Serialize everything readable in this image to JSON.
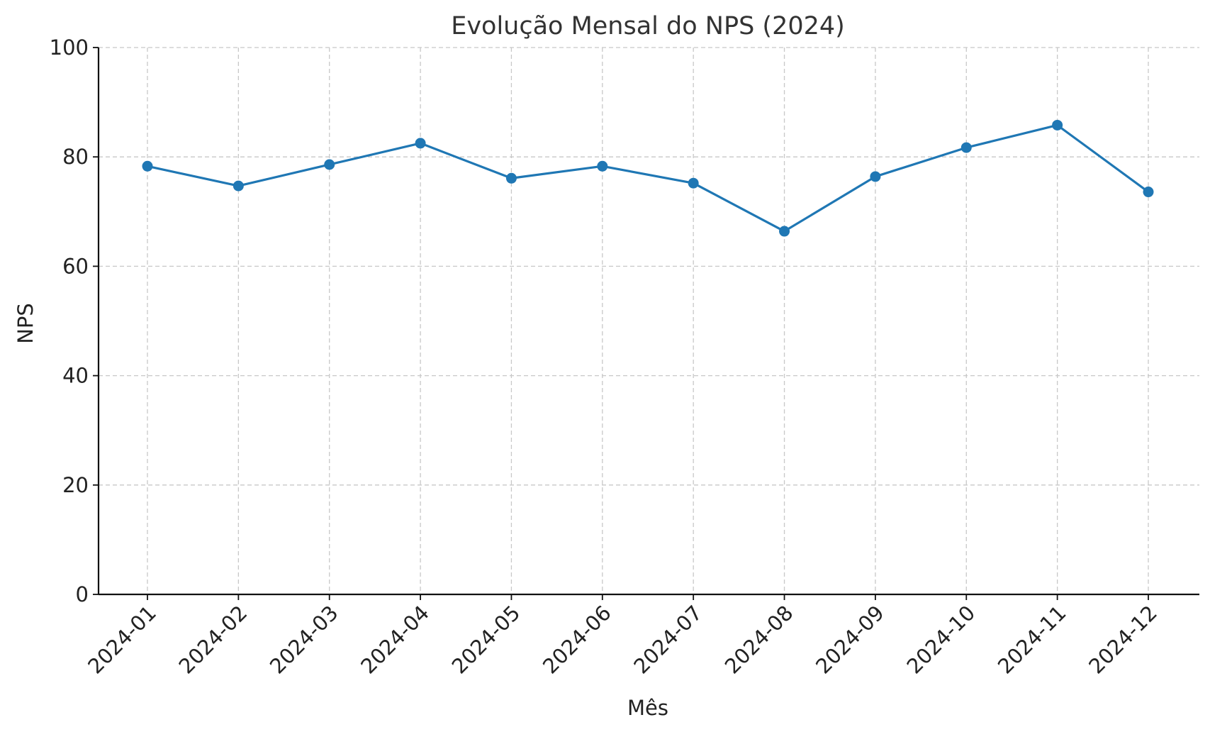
{
  "chart_data": {
    "type": "line",
    "title": "Evolução Mensal do NPS (2024)",
    "xlabel": "Mês",
    "ylabel": "NPS",
    "ylim": [
      0,
      100
    ],
    "yticks": [
      0,
      20,
      40,
      60,
      80,
      100
    ],
    "grid": true,
    "line_color": "#1f77b4",
    "categories": [
      "2024-01",
      "2024-02",
      "2024-03",
      "2024-04",
      "2024-05",
      "2024-06",
      "2024-07",
      "2024-08",
      "2024-09",
      "2024-10",
      "2024-11",
      "2024-12"
    ],
    "series": [
      {
        "values": [
          78.3,
          74.7,
          78.6,
          82.5,
          76.1,
          78.3,
          75.2,
          66.4,
          76.4,
          81.7,
          85.8,
          73.6
        ]
      }
    ]
  }
}
